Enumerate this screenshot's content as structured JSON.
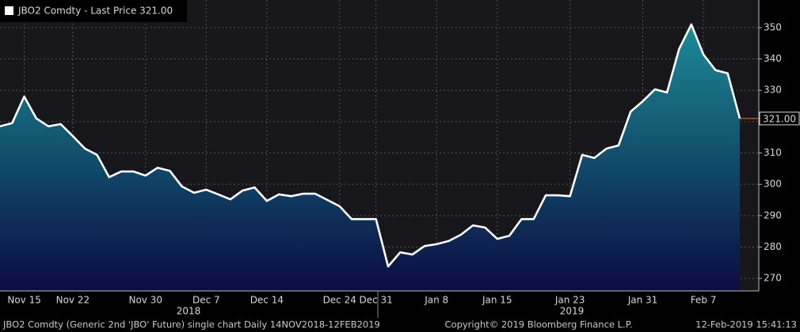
{
  "chart_data": {
    "type": "line",
    "title": "JBO2 Comdty - Last Price 321.00",
    "categories": [
      null,
      null,
      "Nov 15",
      null,
      null,
      null,
      "Nov 22",
      null,
      null,
      null,
      null,
      null,
      "Nov 30",
      null,
      null,
      null,
      null,
      "Dec 7",
      null,
      null,
      null,
      null,
      "Dec 14",
      null,
      null,
      null,
      null,
      null,
      "Dec 24",
      null,
      null,
      "Dec 31",
      null,
      null,
      null,
      null,
      "Jan 8",
      null,
      null,
      null,
      null,
      "Jan 15",
      null,
      null,
      null,
      null,
      null,
      "Jan 23",
      null,
      null,
      null,
      null,
      null,
      "Jan 31",
      null,
      null,
      null,
      null,
      "Feb 7",
      null,
      null,
      null
    ],
    "x_group_labels": [
      "2018",
      "2019"
    ],
    "series": [
      {
        "name": "JBO2 Comdty",
        "color": "#ffffff",
        "values": [
          318.5,
          319.5,
          328,
          321,
          318.5,
          319.2,
          315.4,
          311.4,
          309.4,
          302.3,
          304.1,
          304.1,
          302.8,
          305.3,
          304.3,
          299.3,
          297.3,
          298.3,
          296.8,
          295.2,
          298.0,
          299.0,
          294.7,
          296.8,
          296.2,
          297.0,
          297.0,
          295.0,
          293.0,
          288.9,
          288.9,
          288.9,
          273.8,
          278.3,
          277.6,
          280.3,
          280.9,
          281.9,
          283.9,
          286.9,
          286.2,
          282.6,
          283.6,
          288.9,
          288.9,
          296.5,
          296.5,
          296.2,
          309.4,
          308.4,
          311.4,
          312.4,
          323.2,
          326.5,
          330.3,
          329.3,
          343.2,
          351.0,
          341.4,
          336.4,
          335.4,
          321.0
        ],
        "last_value_label": "321.00"
      }
    ],
    "ylim": [
      266,
      358.8
    ],
    "yticks": [
      270,
      280,
      290,
      300,
      310,
      320,
      330,
      340,
      350
    ],
    "grid": true,
    "footer": {
      "left": "JBO2 Comdty (Generic 2nd 'JBO' Future) single chart  Daily 14NOV2018-12FEB2019",
      "center": "Copyright© 2019 Bloomberg Finance L.P.",
      "right": "12-Feb-2019 15:41:13"
    }
  }
}
